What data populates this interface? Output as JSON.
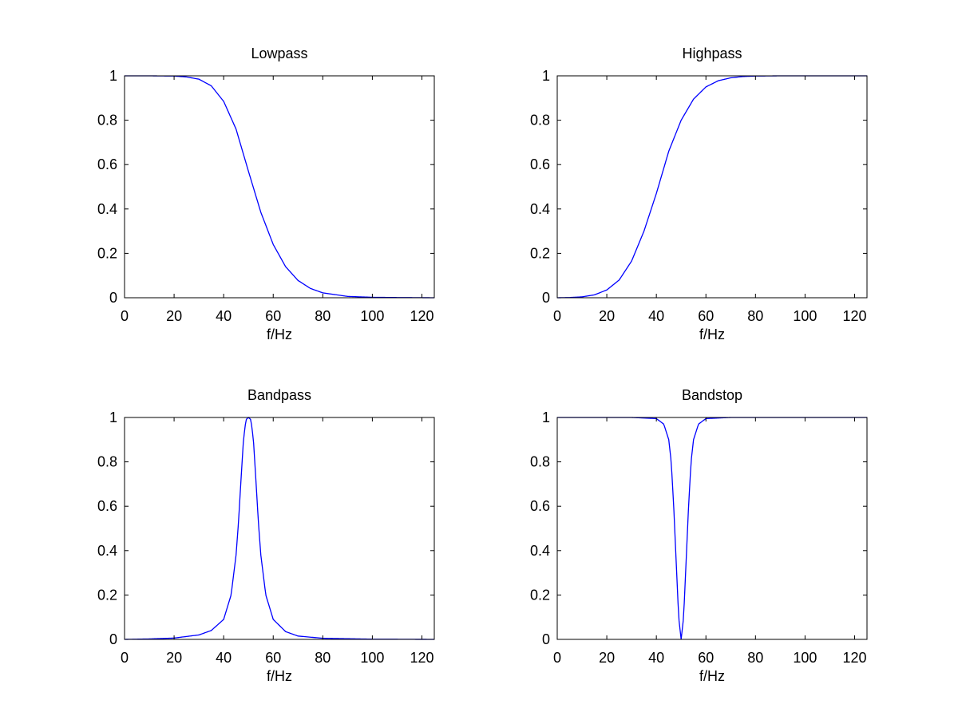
{
  "chart_data": [
    {
      "type": "line",
      "title": "Lowpass",
      "xlabel": "f/Hz",
      "ylabel": "",
      "xlim": [
        0,
        125
      ],
      "ylim": [
        0,
        1
      ],
      "xticks": [
        0,
        20,
        40,
        60,
        80,
        100,
        120
      ],
      "yticks": [
        0,
        0.2,
        0.4,
        0.6,
        0.8,
        1
      ],
      "ytick_labels": [
        "0",
        "0.2",
        "0.4",
        "0.6",
        "0.8",
        "1"
      ],
      "grid": false,
      "series": [
        {
          "color": "#0000ff",
          "x": [
            0,
            10,
            20,
            25,
            30,
            35,
            40,
            45,
            50,
            55,
            60,
            65,
            70,
            75,
            80,
            90,
            100,
            110,
            125
          ],
          "y": [
            1,
            1,
            0.999,
            0.995,
            0.985,
            0.955,
            0.885,
            0.76,
            0.57,
            0.385,
            0.24,
            0.14,
            0.078,
            0.042,
            0.022,
            0.006,
            0.002,
            0.001,
            0
          ]
        }
      ]
    },
    {
      "type": "line",
      "title": "Highpass",
      "xlabel": "f/Hz",
      "ylabel": "",
      "xlim": [
        0,
        125
      ],
      "ylim": [
        0,
        1
      ],
      "xticks": [
        0,
        20,
        40,
        60,
        80,
        100,
        120
      ],
      "yticks": [
        0,
        0.2,
        0.4,
        0.6,
        0.8,
        1
      ],
      "ytick_labels": [
        "0",
        "0.2",
        "0.4",
        "0.6",
        "0.8",
        "1"
      ],
      "grid": false,
      "series": [
        {
          "color": "#0000ff",
          "x": [
            0,
            5,
            10,
            15,
            20,
            25,
            30,
            35,
            40,
            45,
            50,
            55,
            60,
            65,
            70,
            75,
            80,
            90,
            100,
            125
          ],
          "y": [
            0,
            0.001,
            0.004,
            0.013,
            0.035,
            0.08,
            0.165,
            0.3,
            0.47,
            0.66,
            0.8,
            0.895,
            0.95,
            0.978,
            0.991,
            0.997,
            0.999,
            1,
            1,
            1
          ]
        }
      ]
    },
    {
      "type": "line",
      "title": "Bandpass",
      "xlabel": "f/Hz",
      "ylabel": "",
      "xlim": [
        0,
        125
      ],
      "ylim": [
        0,
        1
      ],
      "xticks": [
        0,
        20,
        40,
        60,
        80,
        100,
        120
      ],
      "yticks": [
        0,
        0.2,
        0.4,
        0.6,
        0.8,
        1
      ],
      "ytick_labels": [
        "0",
        "0.2",
        "0.4",
        "0.6",
        "0.8",
        "1"
      ],
      "grid": false,
      "series": [
        {
          "color": "#0000ff",
          "x": [
            0,
            10,
            20,
            30,
            35,
            40,
            43,
            45,
            46,
            47,
            48,
            49,
            50,
            51,
            52,
            53,
            54,
            55,
            57,
            60,
            65,
            70,
            80,
            100,
            125
          ],
          "y": [
            0,
            0.002,
            0.006,
            0.02,
            0.04,
            0.09,
            0.2,
            0.38,
            0.53,
            0.72,
            0.9,
            0.99,
            1,
            0.99,
            0.9,
            0.72,
            0.53,
            0.38,
            0.2,
            0.09,
            0.035,
            0.015,
            0.005,
            0.001,
            0
          ]
        }
      ]
    },
    {
      "type": "line",
      "title": "Bandstop",
      "xlabel": "f/Hz",
      "ylabel": "",
      "xlim": [
        0,
        125
      ],
      "ylim": [
        0,
        1
      ],
      "xticks": [
        0,
        20,
        40,
        60,
        80,
        100,
        120
      ],
      "yticks": [
        0,
        0.2,
        0.4,
        0.6,
        0.8,
        1
      ],
      "ytick_labels": [
        "0",
        "0.2",
        "0.4",
        "0.6",
        "0.8",
        "1"
      ],
      "grid": false,
      "series": [
        {
          "color": "#0000ff",
          "x": [
            0,
            30,
            40,
            43,
            45,
            46,
            47,
            48,
            49,
            50,
            51,
            52,
            53,
            54,
            55,
            57,
            60,
            70,
            125
          ],
          "y": [
            1,
            1,
            0.995,
            0.97,
            0.9,
            0.8,
            0.6,
            0.35,
            0.1,
            0,
            0.1,
            0.35,
            0.6,
            0.8,
            0.9,
            0.97,
            0.995,
            1,
            1
          ]
        }
      ]
    }
  ]
}
